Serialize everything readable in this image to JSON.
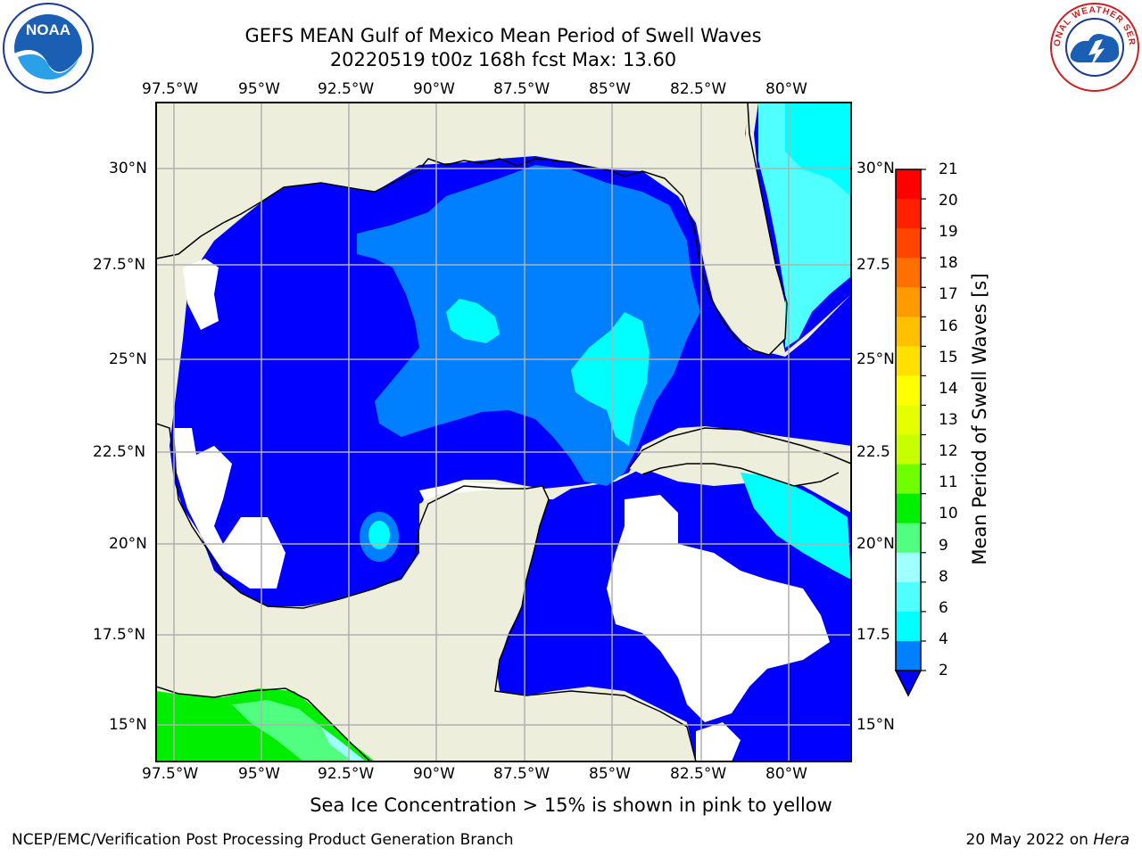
{
  "title": {
    "line1": "GEFS MEAN Gulf of Mexico Mean Period of Swell Waves",
    "line2": "20220519 t00z 168h fcst   Max: 13.60"
  },
  "logos": {
    "left": {
      "name": "noaa-logo",
      "text": "NOAA"
    },
    "right": {
      "name": "national-weather-service-logo",
      "text": "NATIONAL WEATHER SERVICE"
    }
  },
  "map": {
    "lon_labels": [
      "97.5°W",
      "95°W",
      "92.5°W",
      "90°W",
      "87.5°W",
      "85°W",
      "82.5°W",
      "80°W"
    ],
    "lat_labels": [
      "30°N",
      "27.5°N",
      "25°N",
      "22.5°N",
      "20°N",
      "17.5°N",
      "15°N"
    ],
    "lat_labels_right": [
      "30°N",
      "27.5",
      "25°N",
      "22.5",
      "20°N",
      "17.5",
      "15°N"
    ],
    "colors": {
      "land": "#eeeedc",
      "ocean_2_4": "#0000ff",
      "ocean_4_6": "#0080ff",
      "ocean_6_8": "#00ffff",
      "green": "#00ee00",
      "coast": "#000000",
      "grid": "#b0b0b0"
    }
  },
  "colorbar": {
    "label": "Mean Period of Swell Waves [s]",
    "ticks": [
      "21",
      "20",
      "19",
      "18",
      "17",
      "16",
      "15",
      "14",
      "13",
      "12",
      "11",
      "10",
      "9",
      "8",
      "6",
      "4",
      "2"
    ],
    "colors": [
      "#ff0000",
      "#ff2000",
      "#ff4500",
      "#ff7000",
      "#ff9a00",
      "#ffc000",
      "#ffe000",
      "#ffff00",
      "#e6ff00",
      "#c8ff00",
      "#70ff00",
      "#00f000",
      "#50ff80",
      "#a0ffff",
      "#50ffff",
      "#00ffff",
      "#0080ff",
      "#0000ff"
    ]
  },
  "note": "Sea Ice Concentration > 15% is shown in pink to yellow",
  "footer": {
    "left": "NCEP/EMC/Verification Post Processing Product Generation Branch",
    "right_date": "20 May 2022 on ",
    "right_host": "Hera"
  }
}
